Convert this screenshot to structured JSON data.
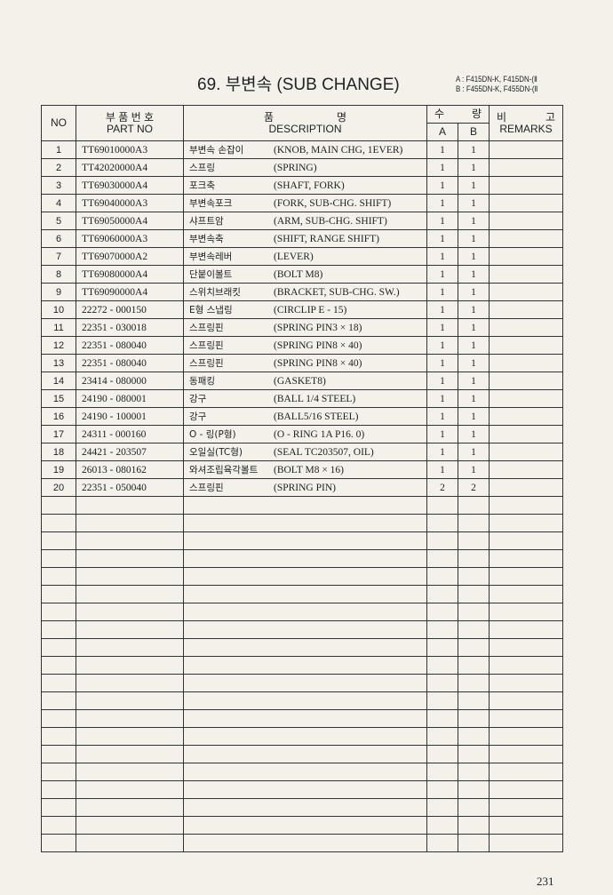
{
  "header": {
    "title": "69.  부변속 (SUB CHANGE)",
    "model_a": "A : F415DN-K, F415DN-(Ⅱ",
    "model_b": "B : F455DN-K, F455DN-(Ⅱ"
  },
  "columns": {
    "no": "NO",
    "part_ko": "부 품 번 호",
    "part_en": "PART  NO",
    "desc_ko_1": "품",
    "desc_ko_2": "명",
    "desc_en": "DESCRIPTION",
    "qty_ko_1": "수",
    "qty_ko_2": "량",
    "qty_a": "A",
    "qty_b": "B",
    "remarks_ko_1": "비",
    "remarks_ko_2": "고",
    "remarks_en": "REMARKS"
  },
  "rows": [
    {
      "no": "1",
      "part": "TT69010000A3",
      "ko": "부변속 손잡이",
      "en": "(KNOB, MAIN CHG, 1EVER)",
      "a": "1",
      "b": "1"
    },
    {
      "no": "2",
      "part": "TT42020000A4",
      "ko": "스프링",
      "en": "(SPRING)",
      "a": "1",
      "b": "1"
    },
    {
      "no": "3",
      "part": "TT69030000A4",
      "ko": "포크축",
      "en": "(SHAFT, FORK)",
      "a": "1",
      "b": "1"
    },
    {
      "no": "4",
      "part": "TT69040000A3",
      "ko": "부변속포크",
      "en": "(FORK, SUB-CHG. SHIFT)",
      "a": "1",
      "b": "1"
    },
    {
      "no": "5",
      "part": "TT69050000A4",
      "ko": "샤프트암",
      "en": "(ARM, SUB-CHG. SHIFT)",
      "a": "1",
      "b": "1"
    },
    {
      "no": "6",
      "part": "TT69060000A3",
      "ko": "부변속축",
      "en": "(SHIFT, RANGE SHIFT)",
      "a": "1",
      "b": "1"
    },
    {
      "no": "7",
      "part": "TT69070000A2",
      "ko": "부변속레버",
      "en": "(LEVER)",
      "a": "1",
      "b": "1"
    },
    {
      "no": "8",
      "part": "TT69080000A4",
      "ko": "단붙이볼트",
      "en": "(BOLT M8)",
      "a": "1",
      "b": "1"
    },
    {
      "no": "9",
      "part": "TT69090000A4",
      "ko": "스위치브래킷",
      "en": "(BRACKET, SUB-CHG. SW.)",
      "a": "1",
      "b": "1"
    },
    {
      "no": "10",
      "part": "22272 - 000150",
      "ko": "E형 스냅링",
      "en": "(CIRCLIP E - 15)",
      "a": "1",
      "b": "1"
    },
    {
      "no": "11",
      "part": "22351 - 030018",
      "ko": "스프링핀",
      "en": "(SPRING PIN3 × 18)",
      "a": "1",
      "b": "1"
    },
    {
      "no": "12",
      "part": "22351 - 080040",
      "ko": "스프링핀",
      "en": "(SPRING PIN8 × 40)",
      "a": "1",
      "b": "1"
    },
    {
      "no": "13",
      "part": "22351 - 080040",
      "ko": "스프링핀",
      "en": "(SPRING PIN8 × 40)",
      "a": "1",
      "b": "1"
    },
    {
      "no": "14",
      "part": "23414 - 080000",
      "ko": "동패킹",
      "en": "(GASKET8)",
      "a": "1",
      "b": "1"
    },
    {
      "no": "15",
      "part": "24190 - 080001",
      "ko": "강구",
      "en": "(BALL 1/4 STEEL)",
      "a": "1",
      "b": "1"
    },
    {
      "no": "16",
      "part": "24190 - 100001",
      "ko": "강구",
      "en": "(BALL5/16 STEEL)",
      "a": "1",
      "b": "1"
    },
    {
      "no": "17",
      "part": "24311 - 000160",
      "ko": "O - 링(P형)",
      "en": "(O - RING 1A P16. 0)",
      "a": "1",
      "b": "1"
    },
    {
      "no": "18",
      "part": "24421 - 203507",
      "ko": "오일실(TC형)",
      "en": "(SEAL TC203507, OIL)",
      "a": "1",
      "b": "1"
    },
    {
      "no": "19",
      "part": "26013 - 080162",
      "ko": "와셔조립육각볼트",
      "en": "(BOLT M8 × 16)",
      "a": "1",
      "b": "1"
    },
    {
      "no": "20",
      "part": "22351 - 050040",
      "ko": "스프링핀",
      "en": "(SPRING PIN)",
      "a": "2",
      "b": "2"
    }
  ],
  "page_number": "231"
}
